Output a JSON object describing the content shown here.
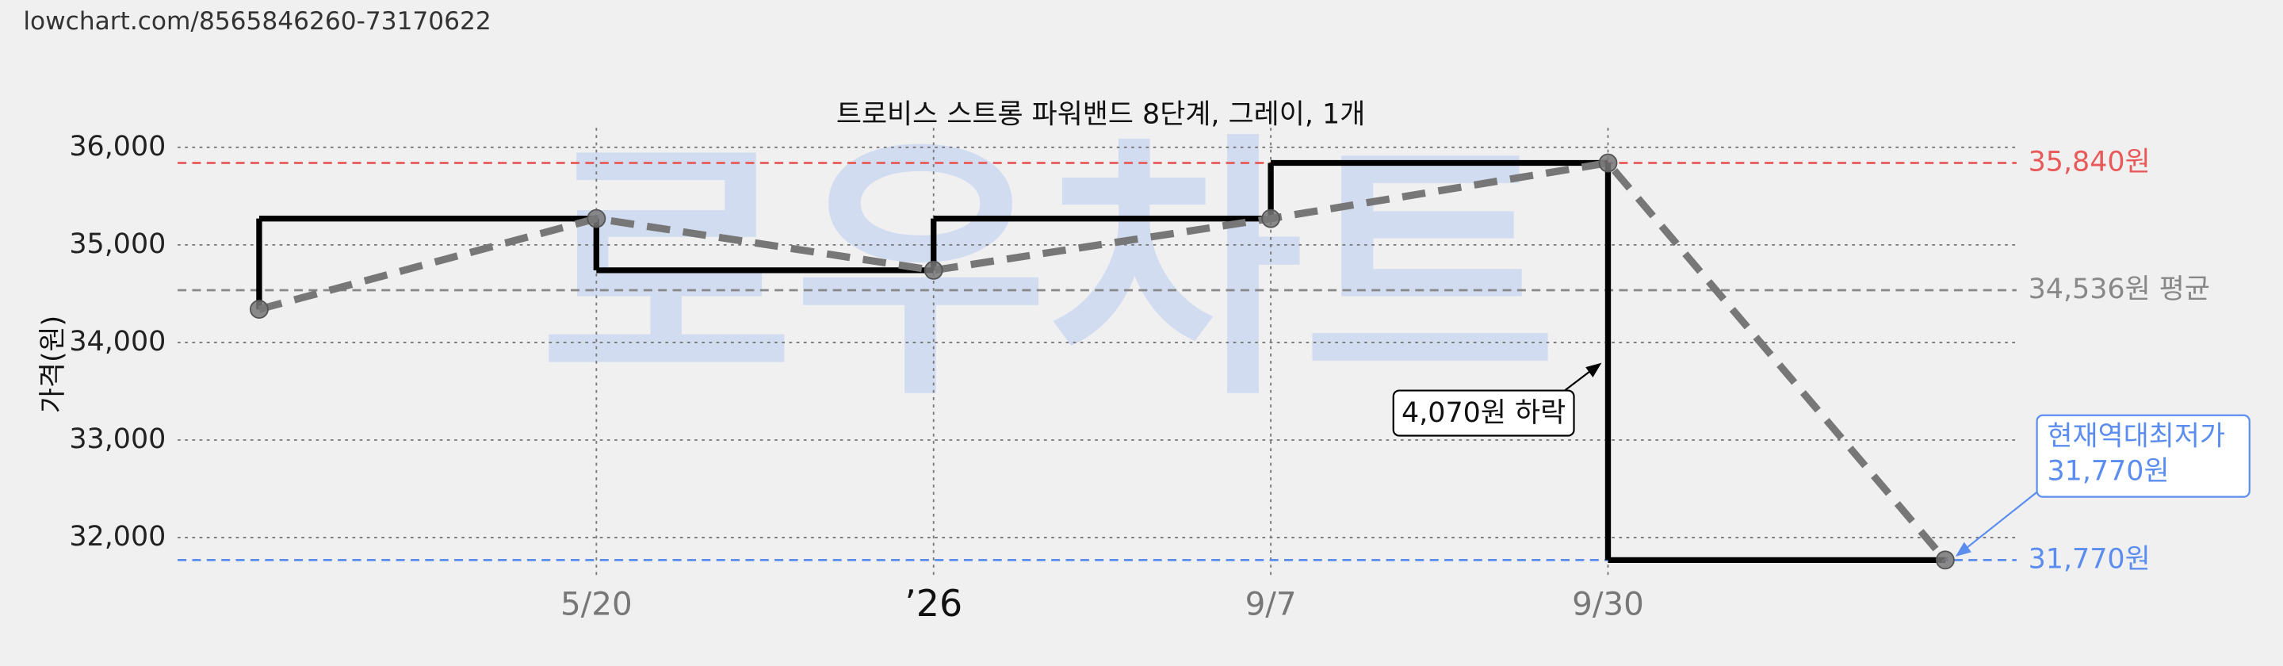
{
  "url": "lowchart.com/8565846260-73170622",
  "watermark": "로우차트",
  "chart_data": {
    "type": "line",
    "title": "트로비스 스트롱 파워밴드 8단계, 그레이, 1개",
    "y_label": "가격(원)",
    "categories": [
      null,
      "5/20",
      "’26",
      "9/7",
      "9/30",
      null
    ],
    "series": [
      {
        "values": [
          34340,
          35270,
          34740,
          35270,
          35840,
          31770
        ],
        "color": "#000000",
        "trend_color": "#777777"
      }
    ],
    "ylim": [
      31600,
      36200
    ],
    "yticks": [
      {
        "value": 32000,
        "label": "32,000"
      },
      {
        "value": 33000,
        "label": "33,000"
      },
      {
        "value": 34000,
        "label": "34,000"
      },
      {
        "value": 35000,
        "label": "35,000"
      },
      {
        "value": 36000,
        "label": "36,000"
      }
    ],
    "grid": true,
    "reference_lines": [
      {
        "value": 35840,
        "label": "35,840원",
        "color": "#e85a5a"
      },
      {
        "value": 34536,
        "label": "34,536원 평균",
        "color": "#888888"
      },
      {
        "value": 31770,
        "label": "31,770원",
        "color": "#5b8def"
      }
    ],
    "annotations": [
      {
        "text": "4,070원 하락"
      },
      {
        "text": "현재역대최저가",
        "text2": "31,770원",
        "color": "#5b8def"
      }
    ]
  }
}
